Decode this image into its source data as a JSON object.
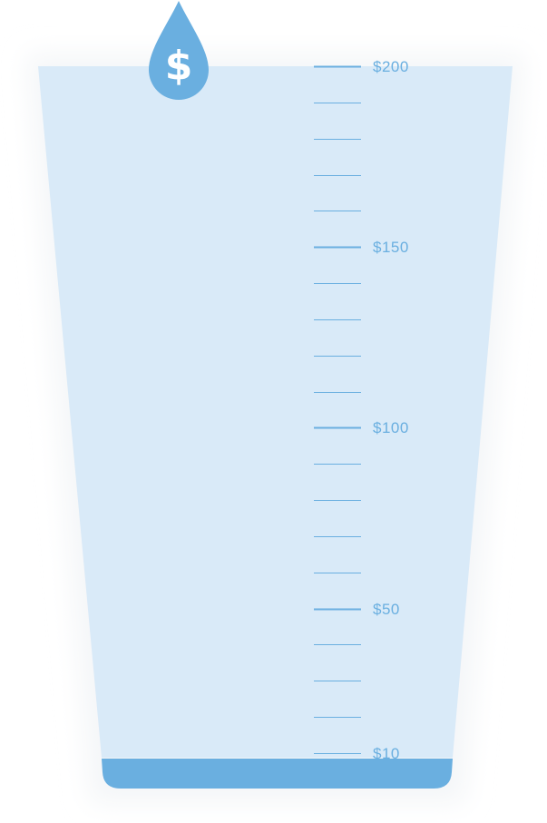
{
  "donation_gauge": {
    "scale": {
      "min": 10,
      "max": 200,
      "minor_step": 10,
      "labels": [
        {
          "value": 200,
          "text": "$200"
        },
        {
          "value": 150,
          "text": "$150"
        },
        {
          "value": 100,
          "text": "$100"
        },
        {
          "value": 50,
          "text": "$50"
        },
        {
          "value": 10,
          "text": "$10"
        }
      ]
    },
    "current_amount": 10,
    "drop_symbol": "$",
    "drop_icon": "dollar-drop-icon",
    "colors": {
      "glass": "#d9eaf8",
      "liquid": "#6aafe0",
      "tick": "#6aafe0",
      "label": "#6aafe0",
      "drop": "#6aafe0",
      "drop_symbol": "#ffffff",
      "halo": "#f4f6f8"
    }
  }
}
